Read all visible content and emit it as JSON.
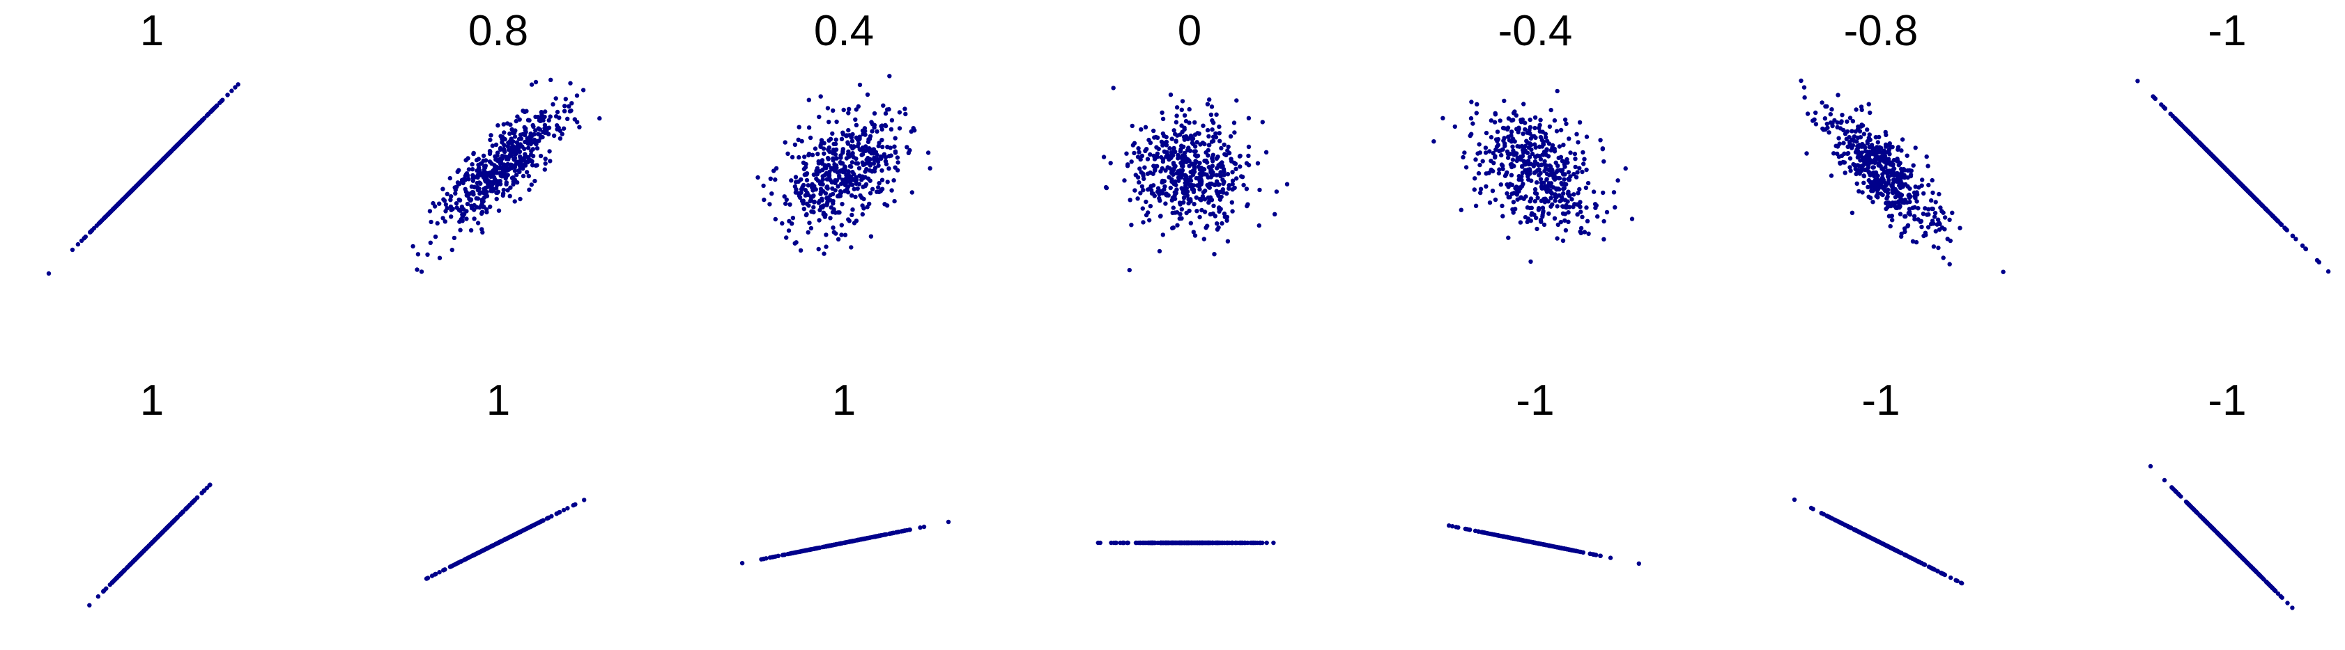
{
  "chart_data": {
    "type": "scatter",
    "grid": false,
    "legend": "none",
    "point_color": "#00008b",
    "background": "#ffffff",
    "panels": [
      {
        "title": "1",
        "kind": "gaussian",
        "r": 1,
        "seed": 11
      },
      {
        "title": "0.8",
        "kind": "gaussian",
        "r": 0.8,
        "seed": 23
      },
      {
        "title": "0.4",
        "kind": "gaussian",
        "r": 0.4,
        "seed": 37
      },
      {
        "title": "0",
        "kind": "gaussian",
        "r": 0,
        "seed": 41
      },
      {
        "title": "-0.4",
        "kind": "gaussian",
        "r": -0.4,
        "seed": 53
      },
      {
        "title": "-0.8",
        "kind": "gaussian",
        "r": -0.8,
        "seed": 67
      },
      {
        "title": "-1",
        "kind": "gaussian",
        "r": -1,
        "seed": 71
      },
      {
        "title": "1",
        "kind": "line",
        "slope": 1.0,
        "seed": 83
      },
      {
        "title": "1",
        "kind": "line",
        "slope": 0.5,
        "seed": 97
      },
      {
        "title": "1",
        "kind": "line",
        "slope": 0.2,
        "seed": 101
      },
      {
        "title": "",
        "kind": "line",
        "slope": 0.0,
        "seed": 113
      },
      {
        "title": "-1",
        "kind": "line",
        "slope": -0.2,
        "seed": 127
      },
      {
        "title": "-1",
        "kind": "line",
        "slope": -0.5,
        "seed": 131
      },
      {
        "title": "-1",
        "kind": "line",
        "slope": -1.0,
        "seed": 149
      }
    ]
  }
}
